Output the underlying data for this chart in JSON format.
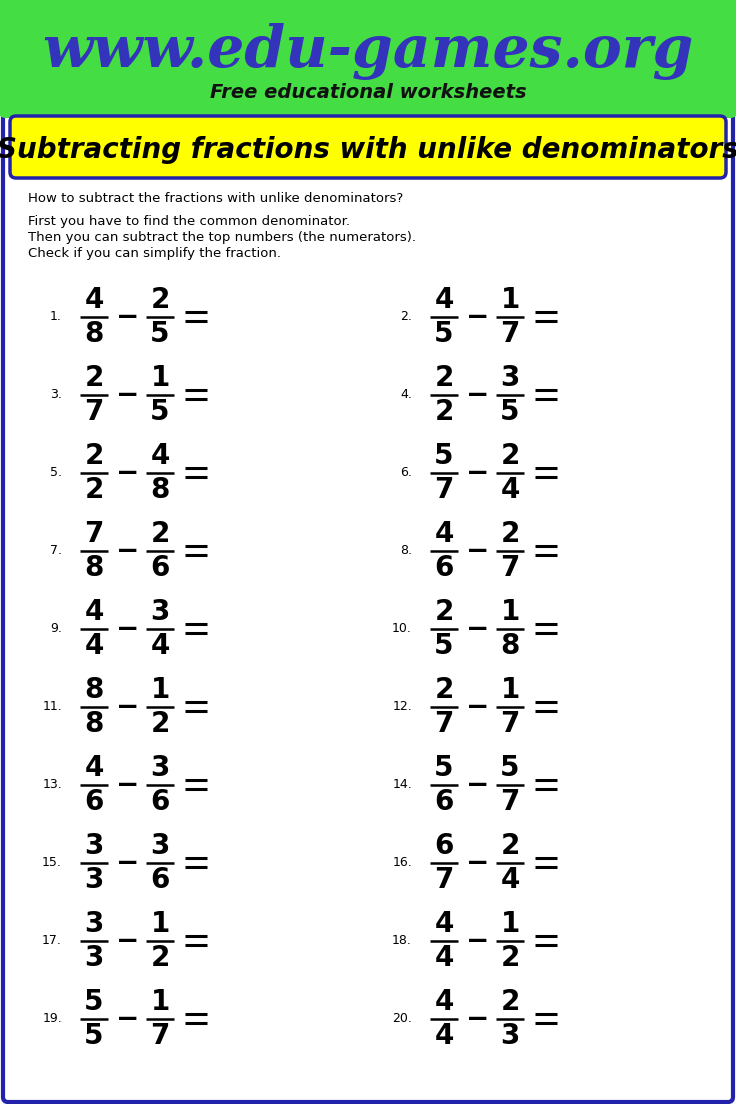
{
  "url": "www.edu-games.org",
  "subtitle": "Free educational worksheets",
  "title": "Subtracting fractions with unlike denominators",
  "instruction1": "How to subtract the fractions with unlike denominators?",
  "instruction2a": "First you have to find the common denominator.",
  "instruction2b": "Then you can subtract the top numbers (the numerators).",
  "instruction2c": "Check if you can simplify the fraction.",
  "problems": [
    {
      "num": 1,
      "n1": 4,
      "d1": 8,
      "n2": 2,
      "d2": 5
    },
    {
      "num": 2,
      "n1": 4,
      "d1": 5,
      "n2": 1,
      "d2": 7
    },
    {
      "num": 3,
      "n1": 2,
      "d1": 7,
      "n2": 1,
      "d2": 5
    },
    {
      "num": 4,
      "n1": 2,
      "d1": 2,
      "n2": 3,
      "d2": 5
    },
    {
      "num": 5,
      "n1": 2,
      "d1": 2,
      "n2": 4,
      "d2": 8
    },
    {
      "num": 6,
      "n1": 5,
      "d1": 7,
      "n2": 2,
      "d2": 4
    },
    {
      "num": 7,
      "n1": 7,
      "d1": 8,
      "n2": 2,
      "d2": 6
    },
    {
      "num": 8,
      "n1": 4,
      "d1": 6,
      "n2": 2,
      "d2": 7
    },
    {
      "num": 9,
      "n1": 4,
      "d1": 4,
      "n2": 3,
      "d2": 4
    },
    {
      "num": 10,
      "n1": 2,
      "d1": 5,
      "n2": 1,
      "d2": 8
    },
    {
      "num": 11,
      "n1": 8,
      "d1": 8,
      "n2": 1,
      "d2": 2
    },
    {
      "num": 12,
      "n1": 2,
      "d1": 7,
      "n2": 1,
      "d2": 7
    },
    {
      "num": 13,
      "n1": 4,
      "d1": 6,
      "n2": 3,
      "d2": 6
    },
    {
      "num": 14,
      "n1": 5,
      "d1": 6,
      "n2": 5,
      "d2": 7
    },
    {
      "num": 15,
      "n1": 3,
      "d1": 3,
      "n2": 3,
      "d2": 6
    },
    {
      "num": 16,
      "n1": 6,
      "d1": 7,
      "n2": 2,
      "d2": 4
    },
    {
      "num": 17,
      "n1": 3,
      "d1": 3,
      "n2": 1,
      "d2": 2
    },
    {
      "num": 18,
      "n1": 4,
      "d1": 4,
      "n2": 1,
      "d2": 2
    },
    {
      "num": 19,
      "n1": 5,
      "d1": 5,
      "n2": 1,
      "d2": 7
    },
    {
      "num": 20,
      "n1": 4,
      "d1": 4,
      "n2": 2,
      "d2": 3
    }
  ],
  "header_bg": "#44dd44",
  "header_url_color": "#3333bb",
  "header_subtitle_color": "#111111",
  "title_bg": "#ffff00",
  "title_color": "#000000",
  "border_color": "#2222aa",
  "body_bg": "#ffffff",
  "text_color": "#000000"
}
